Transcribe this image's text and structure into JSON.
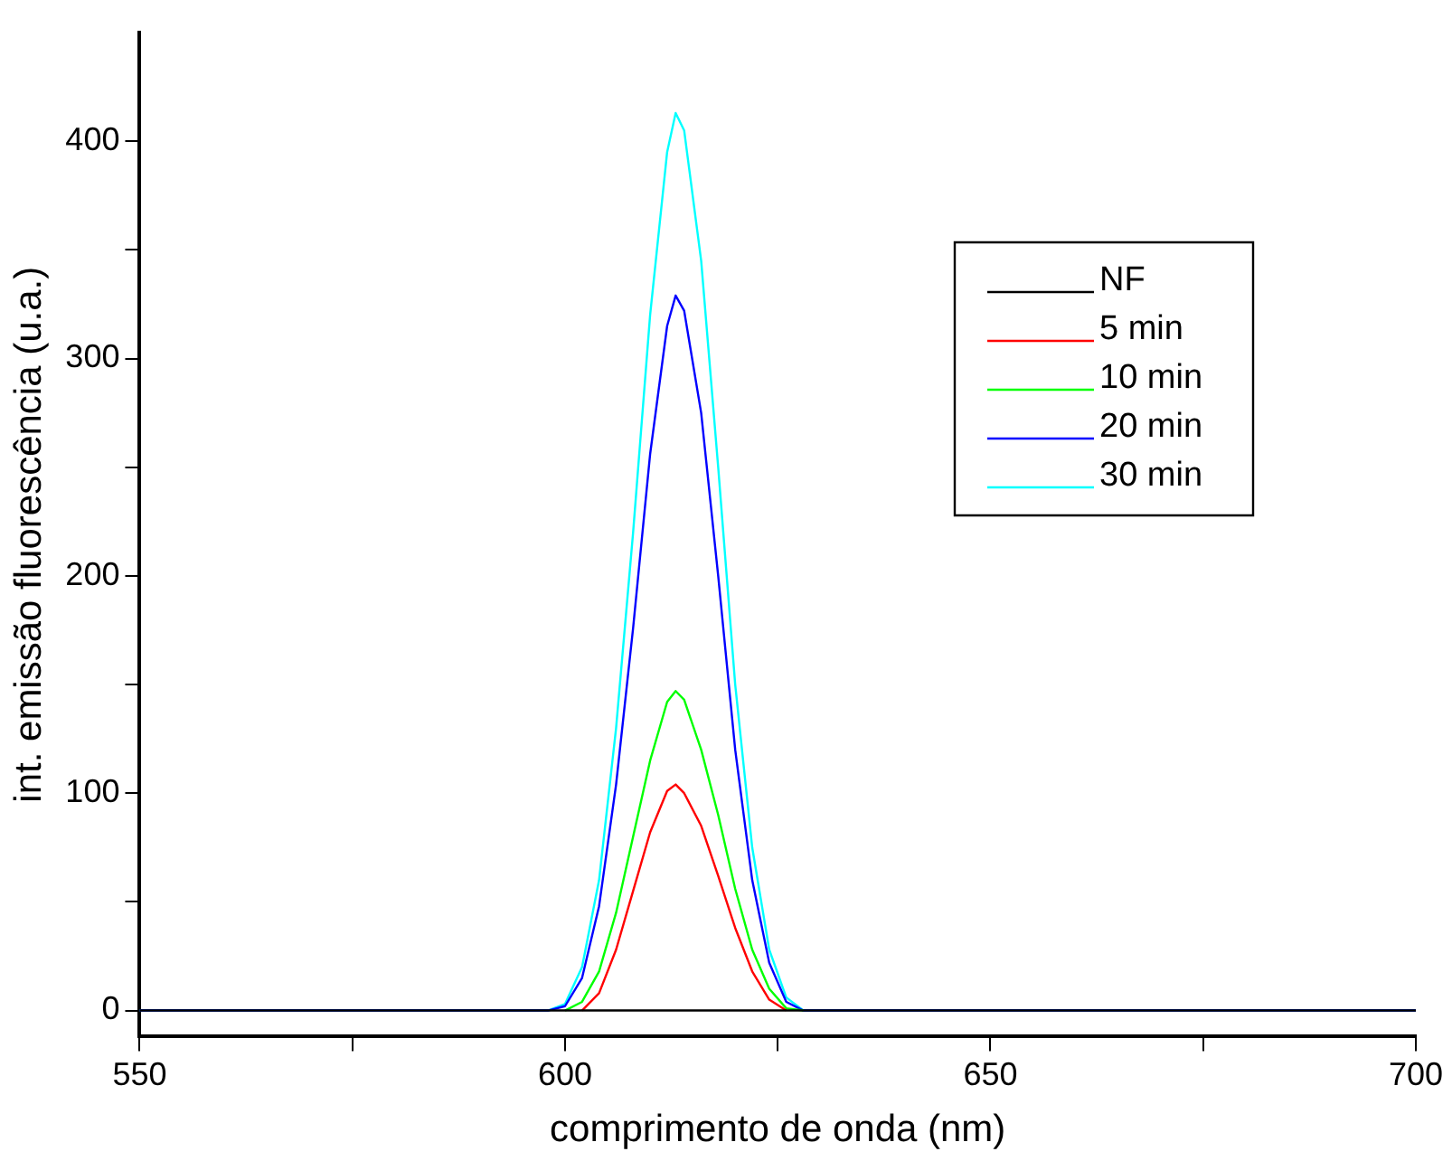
{
  "chart_data": {
    "type": "line",
    "xlabel": "comprimento de onda (nm)",
    "ylabel": "int. emissão fluorescência (u.a.)",
    "xlim": [
      550,
      700
    ],
    "xticks": [
      550,
      {
        "value": 575,
        "label": null
      },
      600,
      {
        "value": 625,
        "label": null
      },
      650,
      {
        "value": 675,
        "label": null
      },
      700
    ],
    "ylim": [
      -12,
      450
    ],
    "yticks": [
      0,
      {
        "value": 50,
        "label": null
      },
      100,
      {
        "value": 150,
        "label": null
      },
      200,
      {
        "value": 250,
        "label": null
      },
      300,
      {
        "value": 350,
        "label": null
      },
      400
    ],
    "grid": false,
    "legend": "top right",
    "marker": "none",
    "line_style": "solid",
    "series": [
      {
        "name": "NF",
        "color": "#000000",
        "x": [
          550,
          700
        ],
        "values": [
          0,
          0
        ]
      },
      {
        "name": "5 min",
        "color": "#ff0000",
        "x": [
          602,
          604,
          606,
          608,
          610,
          612,
          613,
          614,
          616,
          618,
          620,
          622,
          624,
          626
        ],
        "values": [
          0,
          8,
          28,
          55,
          82,
          101,
          104,
          100,
          85,
          62,
          38,
          18,
          5,
          0
        ]
      },
      {
        "name": "10 min",
        "color": "#00ff00",
        "x": [
          600,
          602,
          604,
          606,
          608,
          610,
          612,
          613,
          614,
          616,
          618,
          620,
          622,
          624,
          626,
          628
        ],
        "values": [
          0,
          4,
          18,
          45,
          80,
          115,
          142,
          147,
          143,
          120,
          90,
          56,
          28,
          10,
          1,
          0
        ]
      },
      {
        "name": "20 min",
        "color": "#0000ff",
        "x": [
          550,
          598,
          600,
          602,
          604,
          606,
          608,
          610,
          612,
          613,
          614,
          616,
          618,
          620,
          622,
          624,
          626,
          628,
          700
        ],
        "values": [
          0,
          0,
          2,
          15,
          48,
          104,
          176,
          256,
          315,
          329,
          322,
          275,
          200,
          120,
          60,
          22,
          4,
          0,
          0
        ]
      },
      {
        "name": "30 min",
        "color": "#00ffff",
        "x": [
          550,
          598,
          600,
          602,
          604,
          606,
          608,
          610,
          612,
          613,
          614,
          616,
          618,
          620,
          622,
          624,
          626,
          628,
          700
        ],
        "values": [
          0,
          0,
          3,
          20,
          60,
          130,
          220,
          320,
          395,
          413,
          405,
          345,
          250,
          150,
          75,
          28,
          6,
          0,
          0
        ]
      }
    ]
  }
}
